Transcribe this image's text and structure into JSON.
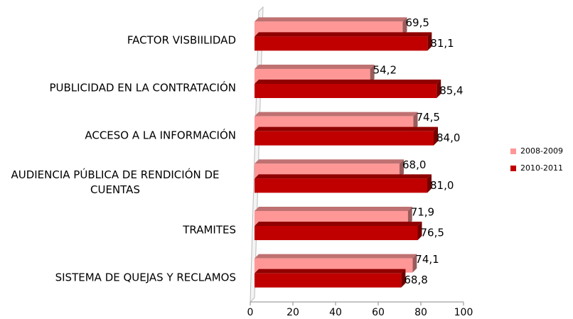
{
  "chart_data": {
    "type": "hbar",
    "categories": [
      "FACTOR VISBIILIDAD",
      "PUBLICIDAD EN LA CONTRATACIÓN",
      "ACCESO A LA INFORMACIÓN",
      "AUDIENCIA PÚBLICA DE RENDICIÓN DE CUENTAS",
      "TRAMITES",
      "SISTEMA DE QUEJAS Y RECLAMOS"
    ],
    "series": [
      {
        "name": "2008-2009",
        "color": "#ff9797",
        "values": [
          69.5,
          54.2,
          74.5,
          68.0,
          71.9,
          74.1
        ],
        "value_labels": [
          "69,5",
          "54,2",
          "74,5",
          "68,0",
          "71,9",
          "74,1"
        ]
      },
      {
        "name": "2010-2011",
        "color": "#c00000",
        "values": [
          81.1,
          85.4,
          84.0,
          81.0,
          76.5,
          68.8
        ],
        "value_labels": [
          "81,1",
          "85,4",
          "84,0",
          "81,0",
          "76,5",
          "68,8"
        ]
      }
    ],
    "xlim": [
      0,
      100
    ],
    "xticks": [
      0,
      20,
      40,
      60,
      80,
      100
    ],
    "legend": "right"
  }
}
